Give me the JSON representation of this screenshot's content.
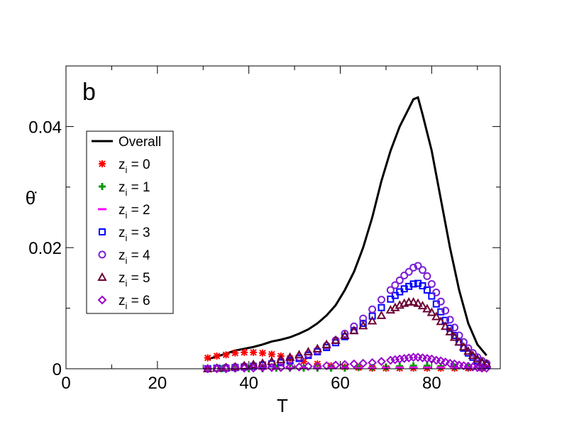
{
  "chart_data": {
    "type": "line",
    "panel_label": "b",
    "xlabel": "T",
    "ylabel": "θ̇",
    "xlim": [
      0,
      95
    ],
    "ylim": [
      0,
      0.05
    ],
    "x_ticks": [
      0,
      20,
      40,
      60,
      80
    ],
    "x_tick_labels": [
      "0",
      "20",
      "40",
      "60",
      "80"
    ],
    "y_ticks": [
      0,
      0.02,
      0.04
    ],
    "y_tick_labels": [
      "0",
      "0.02",
      "0.04"
    ],
    "grid": false,
    "legend_position": "left",
    "series": [
      {
        "name": "Overall",
        "name_sub": "",
        "name_rest": "",
        "marker": "line",
        "color": "#000000",
        "x": [
          31,
          33,
          35,
          37,
          39,
          41,
          43,
          45,
          47,
          49,
          51,
          53,
          55,
          57,
          59,
          61,
          63,
          65,
          67,
          69,
          71,
          73,
          75,
          76,
          77,
          78,
          80,
          82,
          84,
          86,
          88,
          90,
          92
        ],
        "y": [
          0.0016,
          0.002,
          0.0025,
          0.003,
          0.0033,
          0.0036,
          0.004,
          0.0045,
          0.0048,
          0.0052,
          0.0058,
          0.0065,
          0.0075,
          0.0088,
          0.0105,
          0.013,
          0.016,
          0.02,
          0.025,
          0.031,
          0.036,
          0.04,
          0.043,
          0.0445,
          0.0448,
          0.042,
          0.036,
          0.028,
          0.02,
          0.013,
          0.0075,
          0.004,
          0.0022
        ]
      },
      {
        "name": "z",
        "name_sub": "i",
        "name_rest": " = 0",
        "marker": "asterisk",
        "color": "#ff0000",
        "x": [
          31,
          33,
          35,
          37,
          39,
          41,
          43,
          45,
          47,
          49,
          52,
          55,
          58,
          61,
          64,
          67,
          70,
          73,
          76,
          79,
          82,
          85,
          88,
          91
        ],
        "y": [
          0.0018,
          0.0021,
          0.0023,
          0.0026,
          0.0027,
          0.0027,
          0.0026,
          0.0024,
          0.0021,
          0.0017,
          0.0012,
          0.0008,
          0.0005,
          0.0003,
          0.0002,
          0.0001,
          0.0001,
          0.0001,
          0.0001,
          0.0001,
          0.0001,
          0.0001,
          0.0001,
          0.0001
        ]
      },
      {
        "name": "z",
        "name_sub": "i",
        "name_rest": " = 1",
        "marker": "plus",
        "color": "#009900",
        "x": [
          31,
          34,
          37,
          40,
          43,
          46,
          49,
          52,
          55,
          58,
          61,
          64,
          67,
          70,
          73,
          76,
          79,
          82,
          85,
          88,
          91
        ],
        "y": [
          0,
          0,
          0,
          0,
          0,
          0.0001,
          0.0001,
          0.0001,
          0.0001,
          0.0001,
          0.0001,
          0.0002,
          0.0002,
          0.0003,
          0.0004,
          0.0005,
          0.0005,
          0.0004,
          0.0003,
          0.0002,
          0.0001
        ]
      },
      {
        "name": "z",
        "name_sub": "i",
        "name_rest": " = 2",
        "marker": "dash",
        "color": "#ff00ff",
        "x": [
          31,
          34,
          37,
          40,
          43,
          46,
          49,
          52,
          55,
          58,
          61,
          64,
          67,
          70,
          73,
          76,
          79,
          82,
          85,
          88,
          91
        ],
        "y": [
          0,
          0,
          0,
          0,
          0,
          0,
          0.0001,
          0.0001,
          0.0001,
          0.0001,
          0.0001,
          0.0001,
          0.0001,
          0.0002,
          0.0002,
          0.0002,
          0.0002,
          0.0002,
          0.0001,
          0.0001,
          0
        ]
      },
      {
        "name": "z",
        "name_sub": "i",
        "name_rest": " = 3",
        "marker": "square",
        "color": "#0000ff",
        "x": [
          31,
          33,
          35,
          37,
          39,
          41,
          43,
          45,
          47,
          49,
          51,
          53,
          55,
          57,
          59,
          61,
          63,
          65,
          67,
          69,
          71,
          72,
          73,
          74,
          75,
          76,
          77,
          78,
          79,
          80,
          81,
          82,
          83,
          84,
          85,
          86,
          87,
          88,
          89,
          90,
          91,
          92
        ],
        "y": [
          0,
          0.0001,
          0.0001,
          0.0002,
          0.0003,
          0.0004,
          0.0006,
          0.0008,
          0.001,
          0.0013,
          0.0017,
          0.0022,
          0.0028,
          0.0035,
          0.0043,
          0.0053,
          0.0063,
          0.0075,
          0.0087,
          0.0101,
          0.0115,
          0.0121,
          0.0127,
          0.0132,
          0.0136,
          0.014,
          0.0141,
          0.0137,
          0.013,
          0.012,
          0.0107,
          0.0094,
          0.008,
          0.0067,
          0.0055,
          0.0044,
          0.0034,
          0.0026,
          0.0019,
          0.0013,
          0.0009,
          0.0006
        ]
      },
      {
        "name": "z",
        "name_sub": "i",
        "name_rest": " = 4",
        "marker": "circle",
        "color": "#7a1fd6",
        "x": [
          31,
          33,
          35,
          37,
          39,
          41,
          43,
          45,
          47,
          49,
          51,
          53,
          55,
          57,
          59,
          61,
          63,
          65,
          67,
          69,
          71,
          72,
          73,
          74,
          75,
          76,
          77,
          78,
          79,
          80,
          81,
          82,
          83,
          84,
          85,
          86,
          87,
          88,
          89,
          90,
          91,
          92
        ],
        "y": [
          0,
          0.0001,
          0.0002,
          0.0003,
          0.0004,
          0.0005,
          0.0007,
          0.0009,
          0.0012,
          0.0015,
          0.0019,
          0.0024,
          0.003,
          0.0038,
          0.0047,
          0.0058,
          0.007,
          0.0083,
          0.0098,
          0.0114,
          0.013,
          0.0138,
          0.0146,
          0.0154,
          0.016,
          0.0167,
          0.017,
          0.0163,
          0.0153,
          0.014,
          0.0126,
          0.0111,
          0.0096,
          0.0081,
          0.0068,
          0.0055,
          0.0044,
          0.0034,
          0.0026,
          0.0019,
          0.0013,
          0.0009
        ]
      },
      {
        "name": "z",
        "name_sub": "i",
        "name_rest": " = 5",
        "marker": "triangle",
        "color": "#6b0033",
        "x": [
          31,
          33,
          35,
          37,
          39,
          41,
          43,
          45,
          47,
          49,
          51,
          53,
          55,
          57,
          59,
          61,
          63,
          65,
          67,
          69,
          71,
          72,
          73,
          74,
          75,
          76,
          77,
          78,
          79,
          80,
          81,
          82,
          83,
          84,
          85,
          86,
          87,
          88,
          89,
          90,
          91,
          92
        ],
        "y": [
          0,
          0.0001,
          0.0002,
          0.0003,
          0.0005,
          0.0007,
          0.0009,
          0.0012,
          0.0015,
          0.0019,
          0.0023,
          0.0028,
          0.0033,
          0.004,
          0.0047,
          0.0055,
          0.0063,
          0.0071,
          0.0079,
          0.0088,
          0.0097,
          0.0101,
          0.0105,
          0.0108,
          0.011,
          0.011,
          0.0108,
          0.0104,
          0.0099,
          0.0093,
          0.0086,
          0.0078,
          0.007,
          0.0061,
          0.0052,
          0.0044,
          0.0036,
          0.0029,
          0.0022,
          0.0016,
          0.0011,
          0.0008
        ]
      },
      {
        "name": "z",
        "name_sub": "i",
        "name_rest": " = 6",
        "marker": "diamond",
        "color": "#9900cc",
        "x": [
          31,
          33,
          35,
          37,
          39,
          41,
          43,
          45,
          47,
          49,
          51,
          53,
          55,
          57,
          59,
          61,
          63,
          65,
          67,
          69,
          71,
          72,
          73,
          74,
          75,
          76,
          77,
          78,
          79,
          80,
          81,
          82,
          83,
          84,
          85,
          86,
          87,
          88,
          89,
          90,
          91,
          92
        ],
        "y": [
          0,
          0,
          0,
          0.0001,
          0.0001,
          0.0001,
          0.0002,
          0.0002,
          0.0002,
          0.0003,
          0.0003,
          0.0004,
          0.0004,
          0.0005,
          0.0006,
          0.0007,
          0.0008,
          0.0009,
          0.001,
          0.0012,
          0.0014,
          0.0015,
          0.0016,
          0.0017,
          0.0018,
          0.0019,
          0.0019,
          0.0018,
          0.0017,
          0.0016,
          0.0014,
          0.0013,
          0.0011,
          0.0009,
          0.0008,
          0.0006,
          0.0005,
          0.0004,
          0.0003,
          0.0002,
          0.0001,
          0.0001
        ]
      }
    ]
  }
}
